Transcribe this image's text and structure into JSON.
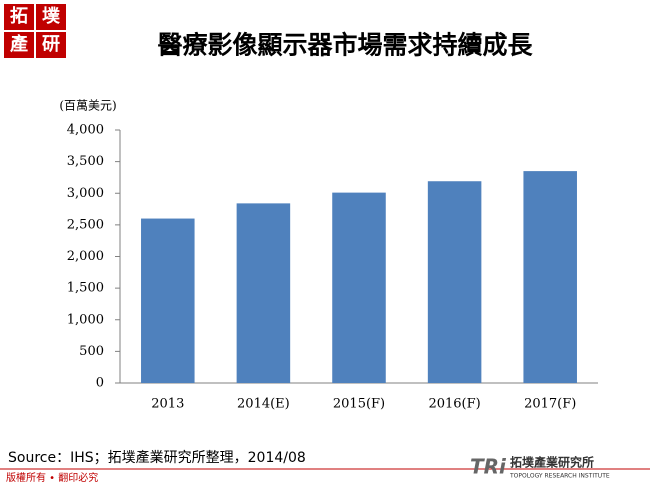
{
  "header": {
    "logo": [
      "拓",
      "墣",
      "產",
      "研"
    ]
  },
  "chart_data": {
    "type": "bar",
    "title": "醫療影像顯示器市場需求持續成長",
    "y_label": "(百萬美元)",
    "categories": [
      "2013",
      "2014(E)",
      "2015(F)",
      "2016(F)",
      "2017(F)"
    ],
    "values": [
      2600,
      2840,
      3010,
      3190,
      3350
    ],
    "color": "#4f81bd",
    "ylim": [
      0,
      4000
    ],
    "yticks": [
      0,
      500,
      {
        "value": 1000,
        "label": "1,000"
      },
      {
        "value": 1500,
        "label": "1,500"
      },
      {
        "value": 2000,
        "label": "2,000"
      },
      {
        "value": 2500,
        "label": "2,500"
      },
      {
        "value": 3000,
        "label": "3,000"
      },
      {
        "value": 3500,
        "label": "3,500"
      },
      {
        "value": 4000,
        "label": "4,000"
      }
    ],
    "grid": false,
    "source": "Source：IHS；拓墣產業研究所整理，2014/08"
  },
  "footer": {
    "copyright": "版權所有 • 翻印必究",
    "brand": "TRi",
    "brand_name": "拓墣產業研究所",
    "brand_english": "TOPOLOGY RESEARCH INSTITUTE"
  }
}
